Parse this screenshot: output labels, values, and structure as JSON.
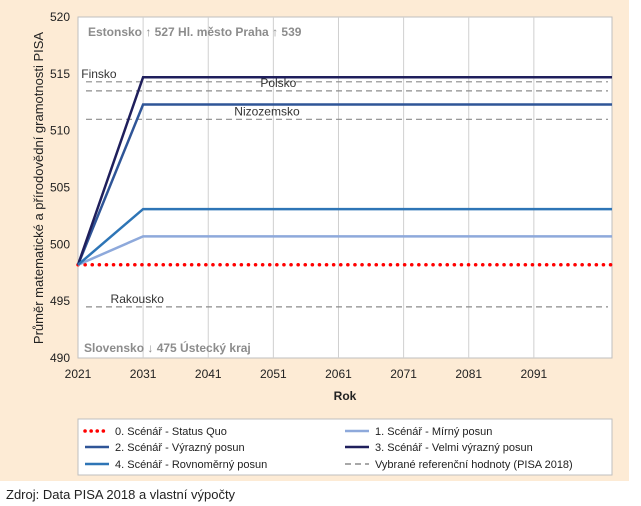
{
  "chart_data": {
    "type": "line",
    "xlabel": "Rok",
    "ylabel": "Průměr matematické a přírodovědní gramotnosti PISA",
    "xlim": [
      2021,
      2103
    ],
    "ylim": [
      490,
      520
    ],
    "xticks": [
      2021,
      2031,
      2041,
      2051,
      2061,
      2071,
      2081,
      2091
    ],
    "yticks": [
      490,
      495,
      500,
      505,
      510,
      515,
      520
    ],
    "grid": "vertical",
    "series": [
      {
        "name": "0. Scénář - Status Quo",
        "color": "#FF0000",
        "style": "dotted",
        "x": [
          2021,
          2103
        ],
        "y": [
          498.2,
          498.2
        ]
      },
      {
        "name": "1. Scénář - Mírný posun",
        "color": "#8EA9DB",
        "style": "solid",
        "x": [
          2021,
          2031,
          2103
        ],
        "y": [
          498.2,
          500.7,
          500.7
        ]
      },
      {
        "name": "2. Scénář - Výrazný posun",
        "color": "#2F5597",
        "style": "solid",
        "x": [
          2021,
          2031,
          2103
        ],
        "y": [
          498.2,
          512.3,
          512.3
        ]
      },
      {
        "name": "3. Scénář - Velmi výrazný posun",
        "color": "#1F1F5C",
        "style": "solid",
        "x": [
          2021,
          2031,
          2103
        ],
        "y": [
          498.2,
          514.7,
          514.7
        ]
      },
      {
        "name": "4. Scénář - Rovnoměrný posun",
        "color": "#2E75B6",
        "style": "solid",
        "x": [
          2021,
          2031,
          2103
        ],
        "y": [
          498.2,
          503.1,
          503.1
        ]
      }
    ],
    "reference_lines": [
      {
        "label": "Finsko",
        "y": 514.3,
        "label_x": 2021.5
      },
      {
        "label": "Polsko",
        "y": 513.5,
        "label_x": 2049
      },
      {
        "label": "Nizozemsko",
        "y": 511.0,
        "label_x": 2045
      },
      {
        "label": "Rakousko",
        "y": 494.5,
        "label_x": 2026
      }
    ],
    "reference_legend": "Vybrané referenční hodnoty (PISA 2018)",
    "notes": [
      "Estonsko ↑ 527 Hl. město Praha ↑ 539",
      "Slovensko ↓ 475 Ústecký kraj"
    ]
  },
  "source": "Zdroj: Data PISA 2018 a vlastní výpočty"
}
